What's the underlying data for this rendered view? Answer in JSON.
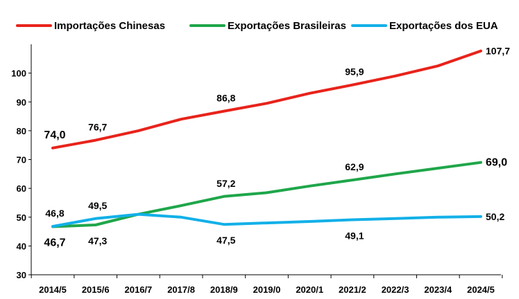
{
  "chart_data": {
    "type": "line",
    "title": "",
    "xlabel": "",
    "ylabel": "",
    "categories": [
      "2014/5",
      "2015/6",
      "2016/7",
      "2017/8",
      "2018/9",
      "2019/0",
      "2020/1",
      "2021/2",
      "2022/3",
      "2023/4",
      "2024/5"
    ],
    "ylim": [
      30,
      110
    ],
    "yticks": [
      30,
      40,
      50,
      60,
      70,
      80,
      90,
      100
    ],
    "grid": false,
    "legend": "top",
    "series": [
      {
        "name": "Importações Chinesas",
        "color": "#e8231b",
        "values": [
          74.0,
          76.7,
          80.0,
          84.0,
          86.8,
          89.5,
          93.0,
          95.9,
          99.0,
          102.5,
          107.7
        ],
        "labels": [
          {
            "index": 0,
            "text": "74,0",
            "pos": "above",
            "big": true
          },
          {
            "index": 1,
            "text": "76,7",
            "pos": "above"
          },
          {
            "index": 4,
            "text": "86,8",
            "pos": "above"
          },
          {
            "index": 7,
            "text": "95,9",
            "pos": "above"
          },
          {
            "index": 10,
            "text": "107,7",
            "pos": "right"
          }
        ]
      },
      {
        "name": "Exportações Brasileiras",
        "color": "#1fa64a",
        "values": [
          46.7,
          47.3,
          51.0,
          54.0,
          57.2,
          58.5,
          60.8,
          62.9,
          65.0,
          67.0,
          69.0
        ],
        "labels": [
          {
            "index": 0,
            "text": "46,7",
            "pos": "below",
            "big": true
          },
          {
            "index": 1,
            "text": "47,3",
            "pos": "below"
          },
          {
            "index": 4,
            "text": "57,2",
            "pos": "above"
          },
          {
            "index": 7,
            "text": "62,9",
            "pos": "above"
          },
          {
            "index": 10,
            "text": "69,0",
            "pos": "right",
            "big": true
          }
        ]
      },
      {
        "name": "Exportações dos EUA",
        "color": "#12b0e8",
        "values": [
          46.8,
          49.5,
          51.0,
          50.0,
          47.5,
          48.0,
          48.5,
          49.1,
          49.5,
          50.0,
          50.2
        ],
        "labels": [
          {
            "index": 0,
            "text": "46,8",
            "pos": "above"
          },
          {
            "index": 1,
            "text": "49,5",
            "pos": "above"
          },
          {
            "index": 4,
            "text": "47,5",
            "pos": "below"
          },
          {
            "index": 7,
            "text": "49,1",
            "pos": "below"
          },
          {
            "index": 10,
            "text": "50,2",
            "pos": "right"
          }
        ]
      }
    ]
  }
}
